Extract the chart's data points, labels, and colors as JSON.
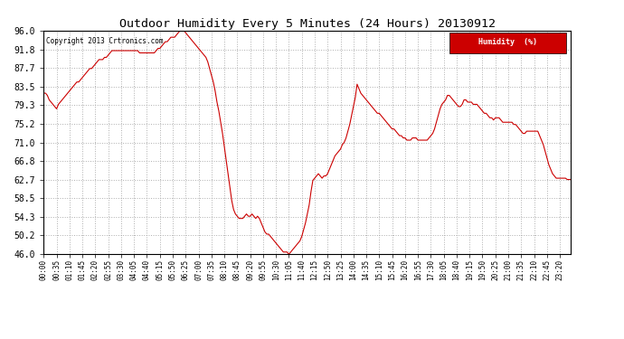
{
  "title": "Outdoor Humidity Every 5 Minutes (24 Hours) 20130912",
  "copyright": "Copyright 2013 Crtronics.com",
  "legend_label": "Humidity  (%)",
  "line_color": "#cc0000",
  "legend_bg": "#cc0000",
  "legend_text_color": "#ffffff",
  "background_color": "#ffffff",
  "plot_bg_color": "#ffffff",
  "grid_color": "#999999",
  "title_color": "#000000",
  "ylim": [
    46.0,
    96.0
  ],
  "yticks": [
    46.0,
    50.2,
    54.3,
    58.5,
    62.7,
    66.8,
    71.0,
    75.2,
    79.3,
    83.5,
    87.7,
    91.8,
    96.0
  ],
  "tick_every_n_points": 7,
  "humidity_values": [
    82.0,
    82.0,
    81.5,
    80.5,
    80.0,
    79.5,
    79.0,
    78.5,
    79.5,
    80.0,
    80.5,
    81.0,
    81.5,
    82.0,
    82.5,
    83.0,
    83.5,
    84.0,
    84.5,
    84.5,
    85.0,
    85.5,
    86.0,
    86.5,
    87.0,
    87.5,
    87.5,
    88.0,
    88.5,
    89.0,
    89.5,
    89.5,
    89.5,
    90.0,
    90.0,
    90.5,
    91.0,
    91.5,
    91.5,
    91.5,
    91.5,
    91.5,
    91.5,
    91.5,
    91.5,
    91.5,
    91.5,
    91.5,
    91.5,
    91.5,
    91.5,
    91.5,
    91.0,
    91.0,
    91.0,
    91.0,
    91.0,
    91.0,
    91.0,
    91.0,
    91.0,
    91.5,
    92.0,
    92.0,
    92.5,
    93.0,
    93.5,
    93.5,
    94.0,
    94.5,
    94.5,
    94.5,
    95.0,
    95.5,
    96.0,
    96.0,
    96.0,
    95.5,
    95.0,
    94.5,
    94.0,
    93.5,
    93.0,
    92.5,
    92.0,
    91.5,
    91.0,
    90.5,
    90.0,
    89.0,
    87.5,
    86.0,
    84.5,
    82.5,
    80.0,
    78.0,
    75.5,
    73.0,
    70.0,
    67.0,
    64.0,
    61.0,
    58.0,
    56.0,
    55.0,
    54.5,
    54.0,
    54.0,
    54.0,
    54.5,
    55.0,
    54.5,
    54.5,
    55.0,
    54.5,
    54.0,
    54.5,
    54.0,
    53.0,
    52.0,
    51.0,
    50.5,
    50.5,
    50.0,
    49.5,
    49.0,
    48.5,
    48.0,
    47.5,
    47.0,
    46.5,
    46.5,
    46.5,
    46.0,
    46.5,
    47.0,
    47.5,
    48.0,
    48.5,
    49.0,
    50.0,
    51.5,
    53.0,
    55.0,
    57.0,
    60.0,
    62.5,
    63.0,
    63.5,
    64.0,
    63.5,
    63.0,
    63.5,
    63.5,
    64.0,
    65.0,
    66.0,
    67.0,
    68.0,
    68.5,
    69.0,
    69.5,
    70.5,
    71.0,
    72.0,
    73.5,
    75.0,
    77.0,
    79.0,
    81.0,
    84.0,
    83.0,
    82.0,
    81.5,
    81.0,
    80.5,
    80.0,
    79.5,
    79.0,
    78.5,
    78.0,
    77.5,
    77.5,
    77.0,
    76.5,
    76.0,
    75.5,
    75.0,
    74.5,
    74.0,
    74.0,
    73.5,
    73.0,
    72.5,
    72.5,
    72.0,
    72.0,
    71.5,
    71.5,
    71.5,
    72.0,
    72.0,
    72.0,
    71.5,
    71.5,
    71.5,
    71.5,
    71.5,
    71.5,
    72.0,
    72.5,
    73.0,
    74.0,
    75.5,
    77.0,
    78.5,
    79.5,
    80.0,
    80.5,
    81.5,
    81.5,
    81.0,
    80.5,
    80.0,
    79.5,
    79.0,
    79.0,
    79.5,
    80.5,
    80.5,
    80.0,
    80.0,
    80.0,
    79.5,
    79.5,
    79.5,
    79.0,
    78.5,
    78.0,
    77.5,
    77.5,
    77.0,
    76.5,
    76.5,
    76.0,
    76.5,
    76.5,
    76.5,
    76.0,
    75.5,
    75.5,
    75.5,
    75.5,
    75.5,
    75.5,
    75.0,
    75.0,
    74.5,
    74.0,
    73.5,
    73.0,
    73.0,
    73.5,
    73.5,
    73.5,
    73.5,
    73.5,
    73.5,
    73.5,
    72.5,
    71.5,
    70.5,
    69.0,
    67.5,
    66.0,
    65.0,
    64.0,
    63.5,
    63.0,
    63.0,
    63.0,
    63.0,
    63.0,
    63.0,
    62.7,
    62.7,
    62.7
  ]
}
